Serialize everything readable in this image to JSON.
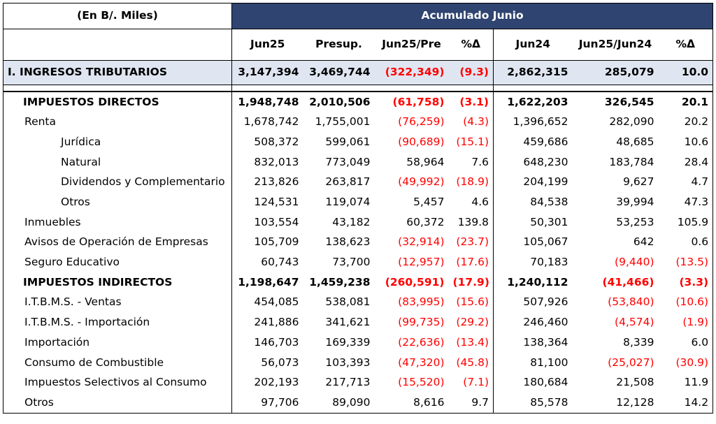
{
  "header": {
    "units_label": "(En B/. Miles)",
    "period_label": "Acumulado Junio",
    "columns": [
      "Jun25",
      "Presup.",
      "Jun25/Pre",
      "%Δ",
      "Jun24",
      "Jun25/Jun24",
      "%Δ"
    ]
  },
  "total": {
    "label": "I. INGRESOS TRIBUTARIOS",
    "values": [
      "3,147,394",
      "3,469,744",
      "(322,349)",
      "(9.3)",
      "2,862,315",
      "285,079",
      "10.0"
    ]
  },
  "rows": [
    {
      "label": "IMPUESTOS DIRECTOS",
      "values": [
        "1,948,748",
        "2,010,506",
        "(61,758)",
        "(3.1)",
        "1,622,203",
        "326,545",
        "20.1"
      ]
    },
    {
      "label": "Renta",
      "values": [
        "1,678,742",
        "1,755,001",
        "(76,259)",
        "(4.3)",
        "1,396,652",
        "282,090",
        "20.2"
      ]
    },
    {
      "label": "Jurídica",
      "values": [
        "508,372",
        "599,061",
        "(90,689)",
        "(15.1)",
        "459,686",
        "48,685",
        "10.6"
      ]
    },
    {
      "label": "Natural",
      "values": [
        "832,013",
        "773,049",
        "58,964",
        "7.6",
        "648,230",
        "183,784",
        "28.4"
      ]
    },
    {
      "label": "Dividendos y Complementario",
      "values": [
        "213,826",
        "263,817",
        "(49,992)",
        "(18.9)",
        "204,199",
        "9,627",
        "4.7"
      ]
    },
    {
      "label": "Otros",
      "values": [
        "124,531",
        "119,074",
        "5,457",
        "4.6",
        "84,538",
        "39,994",
        "47.3"
      ]
    },
    {
      "label": "Inmuebles",
      "values": [
        "103,554",
        "43,182",
        "60,372",
        "139.8",
        "50,301",
        "53,253",
        "105.9"
      ]
    },
    {
      "label": "Avisos de Operación de Empresas",
      "values": [
        "105,709",
        "138,623",
        "(32,914)",
        "(23.7)",
        "105,067",
        "642",
        "0.6"
      ]
    },
    {
      "label": "Seguro Educativo",
      "values": [
        "60,743",
        "73,700",
        "(12,957)",
        "(17.6)",
        "70,183",
        "(9,440)",
        "(13.5)"
      ]
    },
    {
      "label": "IMPUESTOS INDIRECTOS",
      "values": [
        "1,198,647",
        "1,459,238",
        "(260,591)",
        "(17.9)",
        "1,240,112",
        "(41,466)",
        "(3.3)"
      ]
    },
    {
      "label": "I.T.B.M.S. - Ventas",
      "values": [
        "454,085",
        "538,081",
        "(83,995)",
        "(15.6)",
        "507,926",
        "(53,840)",
        "(10.6)"
      ]
    },
    {
      "label": "I.T.B.M.S. - Importación",
      "values": [
        "241,886",
        "341,621",
        "(99,735)",
        "(29.2)",
        "246,460",
        "(4,574)",
        "(1.9)"
      ]
    },
    {
      "label": "Importación",
      "values": [
        "146,703",
        "169,339",
        "(22,636)",
        "(13.4)",
        "138,364",
        "8,339",
        "6.0"
      ]
    },
    {
      "label": "Consumo de Combustible",
      "values": [
        "56,073",
        "103,393",
        "(47,320)",
        "(45.8)",
        "81,100",
        "(25,027)",
        "(30.9)"
      ]
    },
    {
      "label": "Impuestos Selectivos al Consumo",
      "values": [
        "202,193",
        "217,713",
        "(15,520)",
        "(7.1)",
        "180,684",
        "21,508",
        "11.9"
      ]
    },
    {
      "label": "Otros",
      "values": [
        "97,706",
        "89,090",
        "8,616",
        "9.7",
        "85,578",
        "12,128",
        "14.2"
      ]
    }
  ],
  "colors": {
    "header_blue": "#2f4470",
    "total_band": "#dfe6f1",
    "negative": "#ff0000"
  }
}
